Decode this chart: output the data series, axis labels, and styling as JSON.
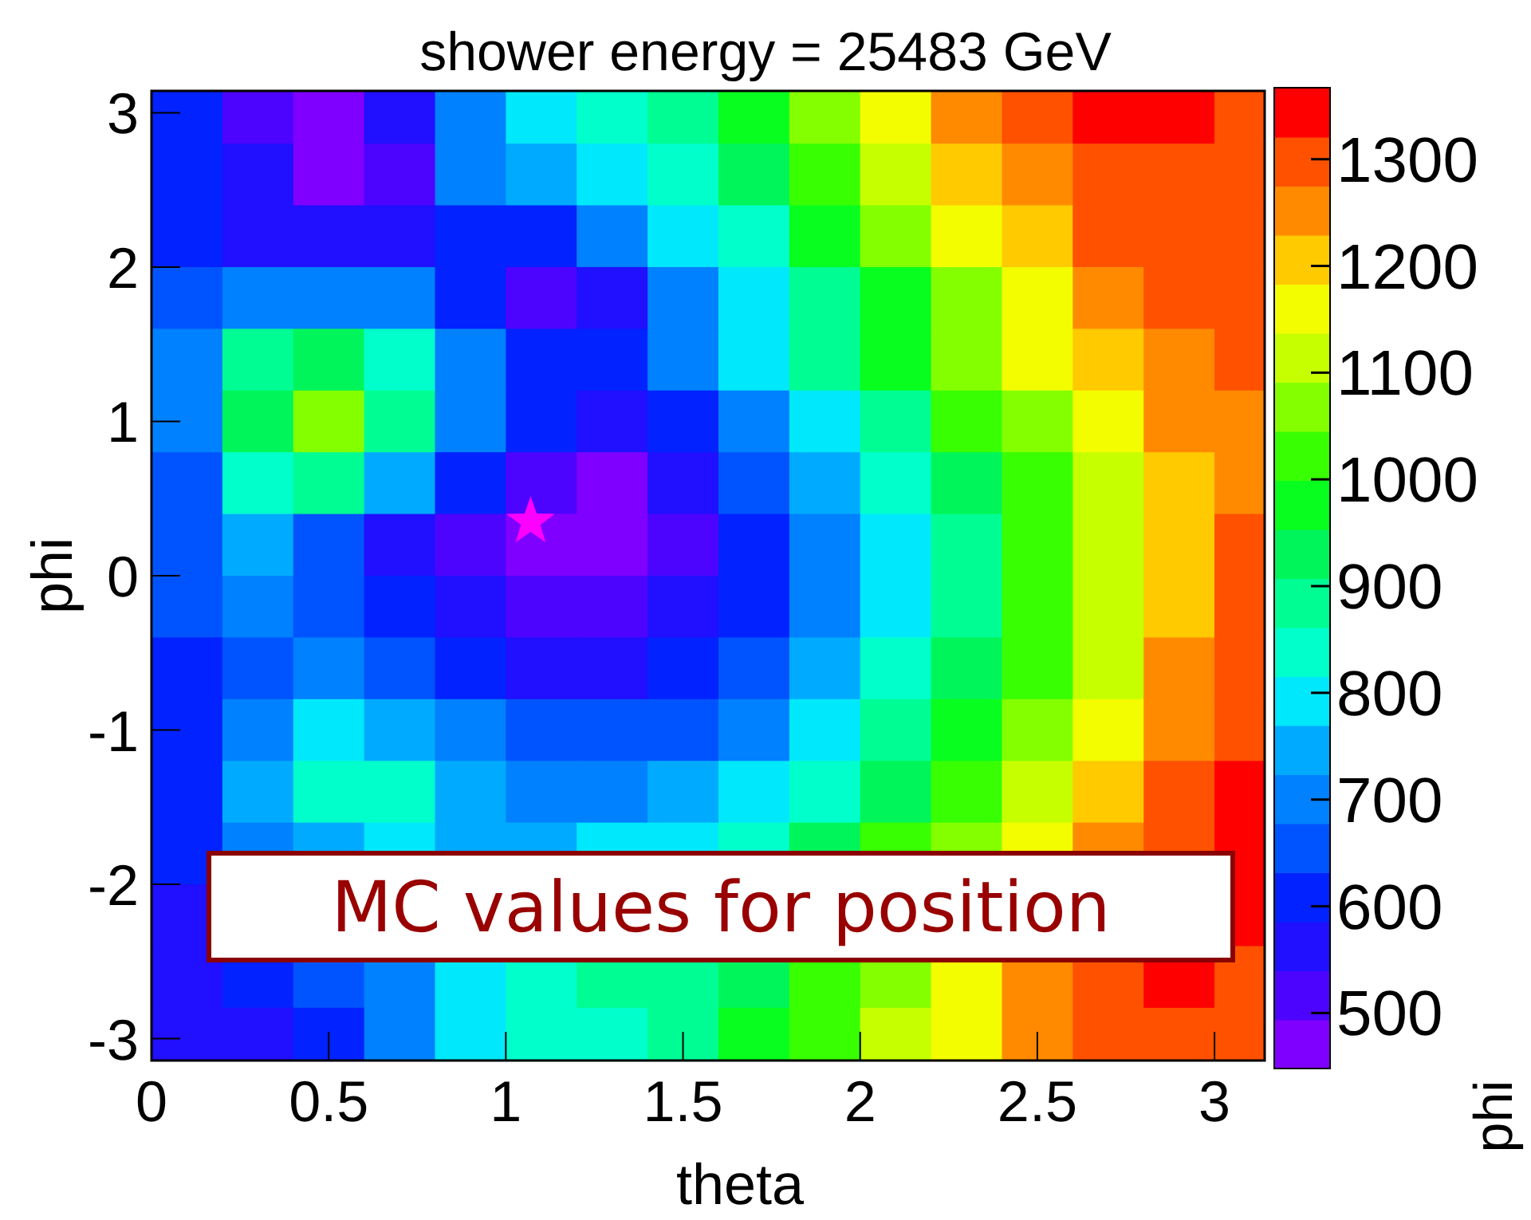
{
  "chart_data": {
    "type": "heatmap",
    "title": "shower energy = 25483 GeV",
    "xlabel": "theta",
    "ylabel": "phi",
    "clabel": "phi",
    "x": [
      0.1,
      0.3,
      0.5,
      0.7,
      0.9,
      1.1,
      1.3,
      1.5,
      1.7,
      1.9,
      2.1,
      2.3,
      2.5,
      2.7,
      2.9,
      3.1
    ],
    "y": [
      3.0,
      2.6,
      2.2,
      1.8,
      1.4,
      1.0,
      0.6,
      0.2,
      -0.2,
      -0.6,
      -1.0,
      -1.4,
      -1.8,
      -2.2,
      -2.6,
      -3.0
    ],
    "cells": [
      [
        600,
        495,
        475,
        580,
        720,
        790,
        830,
        880,
        960,
        1050,
        1145,
        1235,
        1300,
        1335,
        1330,
        1300
      ],
      [
        610,
        540,
        470,
        530,
        680,
        750,
        800,
        850,
        930,
        1020,
        1110,
        1200,
        1270,
        1310,
        1320,
        1310
      ],
      [
        600,
        580,
        560,
        580,
        600,
        590,
        690,
        770,
        860,
        960,
        1050,
        1140,
        1220,
        1280,
        1310,
        1300
      ],
      [
        640,
        690,
        720,
        680,
        600,
        520,
        580,
        680,
        780,
        880,
        980,
        1070,
        1160,
        1230,
        1280,
        1300
      ],
      [
        680,
        870,
        950,
        850,
        700,
        600,
        620,
        700,
        800,
        900,
        990,
        1080,
        1160,
        1220,
        1260,
        1280
      ],
      [
        680,
        930,
        1060,
        880,
        720,
        590,
        540,
        600,
        700,
        800,
        900,
        1000,
        1090,
        1170,
        1230,
        1250
      ],
      [
        670,
        840,
        900,
        750,
        600,
        510,
        485,
        550,
        650,
        740,
        840,
        940,
        1040,
        1130,
        1210,
        1240
      ],
      [
        660,
        730,
        660,
        570,
        500,
        465,
        475,
        520,
        610,
        700,
        800,
        900,
        1000,
        1100,
        1210,
        1290
      ],
      [
        650,
        680,
        650,
        600,
        550,
        520,
        520,
        550,
        630,
        710,
        800,
        900,
        1000,
        1100,
        1210,
        1280
      ],
      [
        620,
        660,
        690,
        640,
        600,
        570,
        575,
        610,
        670,
        750,
        840,
        930,
        1030,
        1130,
        1230,
        1290
      ],
      [
        600,
        700,
        790,
        760,
        680,
        640,
        640,
        660,
        720,
        800,
        880,
        970,
        1070,
        1170,
        1260,
        1300
      ],
      [
        590,
        740,
        860,
        830,
        730,
        690,
        700,
        730,
        780,
        860,
        940,
        1030,
        1120,
        1210,
        1290,
        1330
      ],
      [
        590,
        680,
        760,
        770,
        750,
        760,
        780,
        810,
        860,
        920,
        1000,
        1080,
        1170,
        1260,
        1320,
        1350
      ],
      [
        570,
        null,
        null,
        null,
        null,
        null,
        null,
        null,
        null,
        null,
        null,
        null,
        null,
        null,
        null,
        1340
      ],
      [
        560,
        590,
        640,
        720,
        790,
        860,
        870,
        900,
        950,
        1010,
        1080,
        1160,
        1240,
        1300,
        1330,
        1320
      ],
      [
        560,
        580,
        620,
        700,
        780,
        830,
        860,
        900,
        960,
        1030,
        1100,
        1180,
        1250,
        1300,
        1320,
        1300
      ]
    ],
    "clim": [
      448,
      1367
    ],
    "cticks": [
      500,
      600,
      700,
      800,
      900,
      1000,
      1100,
      1200,
      1300
    ],
    "xlim": [
      0,
      3.1416
    ],
    "ylim": [
      -3.1416,
      3.1416
    ],
    "xticks": [
      0,
      0.5,
      1,
      1.5,
      2,
      2.5,
      3
    ],
    "yticks": [
      -3,
      -2,
      -1,
      0,
      1,
      2,
      3
    ],
    "series": [
      {
        "type": "scatter",
        "x": [
          1.07
        ],
        "values": [
          0.35
        ],
        "color": "#ff00ff",
        "marker": "star"
      }
    ],
    "annotations": [
      "MC values for position"
    ]
  }
}
